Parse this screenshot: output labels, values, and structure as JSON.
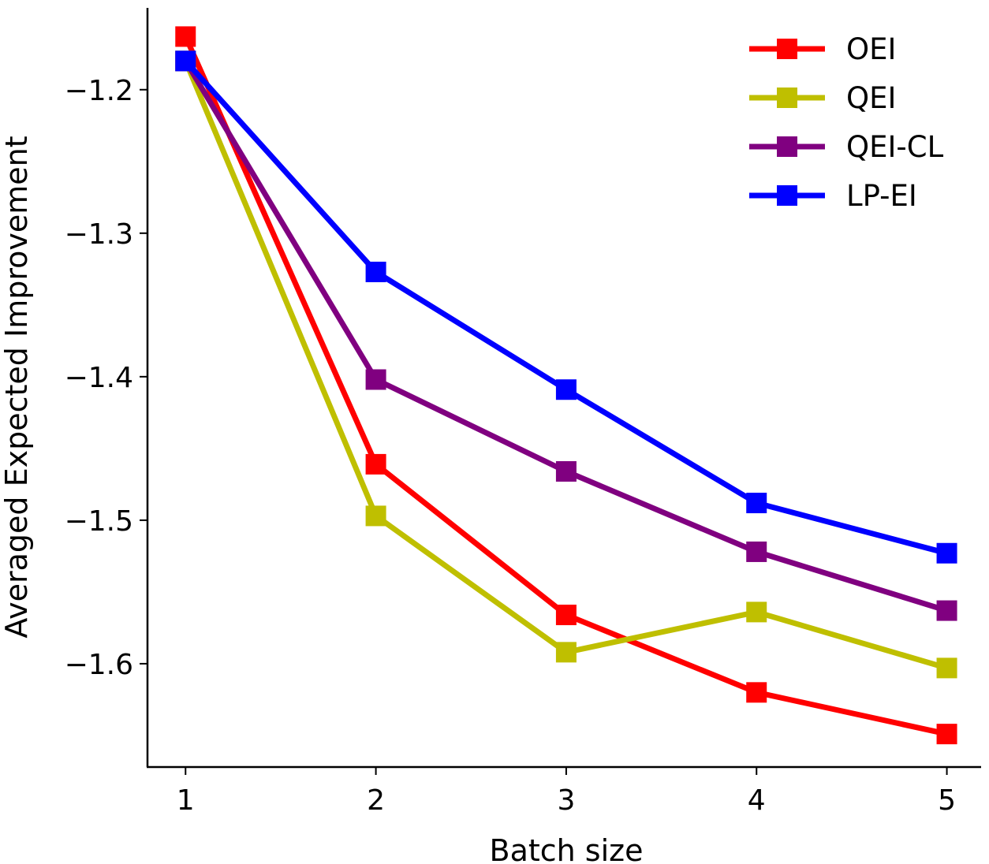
{
  "chart_data": {
    "type": "line",
    "title": "",
    "xlabel": "Batch size",
    "ylabel": "Averaged Expected Improvement",
    "x": [
      1,
      2,
      3,
      4,
      5
    ],
    "x_tick_labels": [
      "1",
      "2",
      "3",
      "4",
      "5"
    ],
    "y_ticks": [
      -1.2,
      -1.3,
      -1.4,
      -1.5,
      -1.6
    ],
    "y_tick_labels": [
      "−1.2",
      "−1.3",
      "−1.4",
      "−1.5",
      "−1.6"
    ],
    "xlim": [
      0.8,
      5.18
    ],
    "ylim": [
      -1.672,
      -1.143
    ],
    "legend_position": "top-right",
    "grid": false,
    "series": [
      {
        "name": "OEI",
        "color": "#ff0000",
        "marker": "square",
        "values": [
          -1.163,
          -1.461,
          -1.566,
          -1.62,
          -1.649
        ]
      },
      {
        "name": "QEI",
        "color": "#bfbf00",
        "marker": "square",
        "values": [
          -1.18,
          -1.497,
          -1.592,
          -1.564,
          -1.603
        ]
      },
      {
        "name": "QEI-CL",
        "color": "#800080",
        "marker": "square",
        "values": [
          -1.18,
          -1.402,
          -1.466,
          -1.522,
          -1.563
        ]
      },
      {
        "name": "LP-EI",
        "color": "#0000ff",
        "marker": "square",
        "values": [
          -1.18,
          -1.327,
          -1.409,
          -1.488,
          -1.523
        ]
      }
    ]
  }
}
